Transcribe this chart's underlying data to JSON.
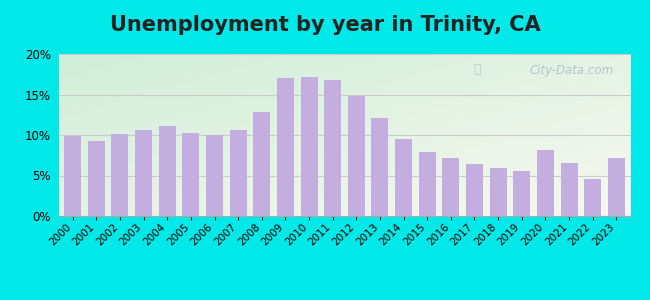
{
  "title": "Unemployment by year in Trinity, CA",
  "years": [
    2000,
    2001,
    2002,
    2003,
    2004,
    2005,
    2006,
    2007,
    2008,
    2009,
    2010,
    2011,
    2012,
    2013,
    2014,
    2015,
    2016,
    2017,
    2018,
    2019,
    2020,
    2021,
    2022,
    2023
  ],
  "values": [
    9.9,
    9.3,
    10.1,
    10.6,
    11.1,
    10.3,
    10.0,
    10.6,
    12.8,
    17.0,
    17.1,
    16.8,
    14.8,
    12.1,
    9.5,
    7.9,
    7.1,
    6.4,
    5.9,
    5.5,
    8.2,
    6.5,
    4.6,
    7.1
  ],
  "bar_color": "#c4aee0",
  "background_outer": "#00e8e8",
  "ylim": [
    0,
    20
  ],
  "yticks": [
    0,
    5,
    10,
    15,
    20
  ],
  "title_fontsize": 15,
  "watermark": "City-Data.com"
}
